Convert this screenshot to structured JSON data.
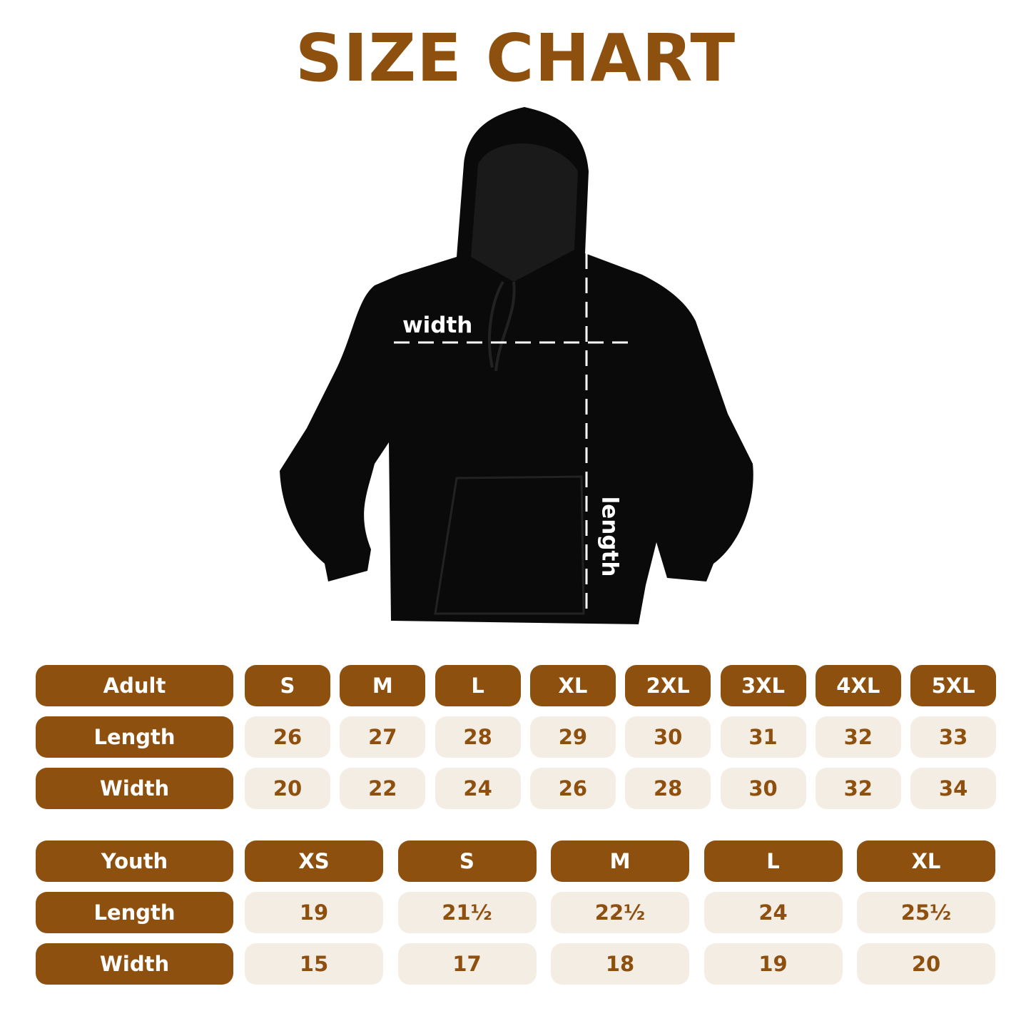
{
  "title": "SIZE CHART",
  "diagram": {
    "width_label": "width",
    "length_label": "length"
  },
  "colors": {
    "brand": "#8e500f",
    "cell_bg": "#f4ede4"
  },
  "adult": {
    "header": "Adult",
    "sizes": [
      "S",
      "M",
      "L",
      "XL",
      "2XL",
      "3XL",
      "4XL",
      "5XL"
    ],
    "rows": [
      {
        "label": "Length",
        "values": [
          "26",
          "27",
          "28",
          "29",
          "30",
          "31",
          "32",
          "33"
        ]
      },
      {
        "label": "Width",
        "values": [
          "20",
          "22",
          "24",
          "26",
          "28",
          "30",
          "32",
          "34"
        ]
      }
    ]
  },
  "youth": {
    "header": "Youth",
    "sizes": [
      "XS",
      "S",
      "M",
      "L",
      "XL"
    ],
    "rows": [
      {
        "label": "Length",
        "values": [
          "19",
          "21½",
          "22½",
          "24",
          "25½"
        ]
      },
      {
        "label": "Width",
        "values": [
          "15",
          "17",
          "18",
          "19",
          "20"
        ]
      }
    ]
  }
}
